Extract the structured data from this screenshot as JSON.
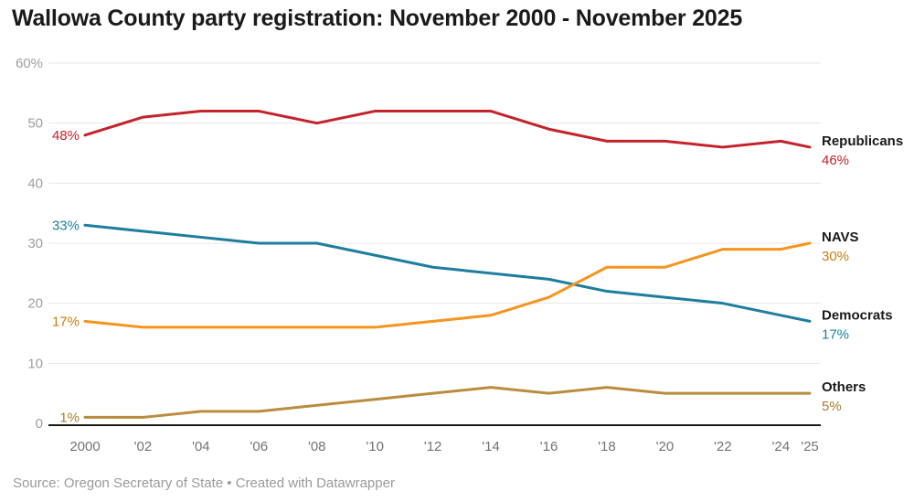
{
  "header": {
    "title": "Wallowa County party registration: November 2000 - November 2025"
  },
  "footer": {
    "source": "Source: Oregon Secretary of State • Created with Datawrapper"
  },
  "chart_data": {
    "type": "line",
    "title": "Wallowa County party registration: November 2000 - November 2025",
    "xlabel": "",
    "ylabel": "",
    "x": [
      2000,
      2002,
      2004,
      2006,
      2008,
      2010,
      2012,
      2014,
      2016,
      2018,
      2020,
      2022,
      2024,
      2025
    ],
    "x_tick_labels": [
      "2000",
      "'02",
      "'04",
      "'06",
      "'08",
      "'10",
      "'12",
      "'14",
      "'16",
      "'18",
      "'20",
      "'22",
      "'24",
      "'25"
    ],
    "ylim": [
      0,
      60
    ],
    "y_ticks": [
      0,
      10,
      20,
      30,
      40,
      50,
      60
    ],
    "y_tick_labels": [
      "0",
      "10",
      "20",
      "30",
      "40",
      "50",
      "60%"
    ],
    "grid": "horizontal",
    "legend_position": "right-of-line-ends",
    "series": [
      {
        "name": "Republicans",
        "values": [
          48,
          51,
          52,
          52,
          50,
          52,
          52,
          52,
          49,
          47,
          47,
          46,
          47,
          46
        ],
        "color": "#c4232b",
        "label_color": "#c4232b",
        "start_label": "48%",
        "end_label": "46%"
      },
      {
        "name": "Democrats",
        "values": [
          33,
          32,
          31,
          30,
          30,
          28,
          26,
          25,
          24,
          22,
          21,
          20,
          18,
          17
        ],
        "color": "#1d7e9e",
        "label_color": "#1d7e9e",
        "start_label": "33%",
        "end_label": "17%"
      },
      {
        "name": "NAVS",
        "values": [
          17,
          16,
          16,
          16,
          16,
          16,
          17,
          18,
          21,
          26,
          26,
          29,
          29,
          30
        ],
        "color": "#f6941e",
        "label_color": "#c87d10",
        "start_label": "17%",
        "end_label": "30%"
      },
      {
        "name": "Others",
        "values": [
          1,
          1,
          2,
          2,
          3,
          4,
          5,
          6,
          5,
          6,
          5,
          5,
          5,
          5
        ],
        "color": "#bb8c3e",
        "label_color": "#a5812f",
        "start_label": "1%",
        "end_label": "5%"
      }
    ],
    "axis_color": "#1a1a1a",
    "gridline_color": "#e7e7e7",
    "y_tick_label_color": "#9e9e9e",
    "x_tick_label_color": "#737373",
    "series_name_color": "#1a1a1a"
  }
}
